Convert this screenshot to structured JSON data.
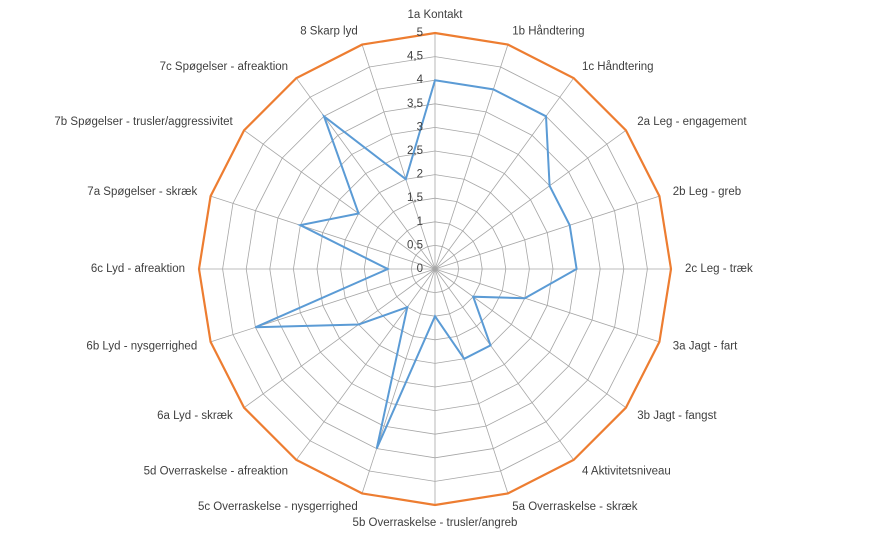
{
  "chart_data": {
    "type": "radar",
    "categories": [
      "1a Kontakt",
      "1b Håndtering",
      "1c Håndtering",
      "2a Leg - engagement",
      "2b Leg - greb",
      "2c Leg - træk",
      "3a Jagt - fart",
      "3b Jagt - fangst",
      "4 Aktivitetsniveau",
      "5a Overraskelse - skræk",
      "5b Overraskelse - trusler/angreb",
      "5c Overraskelse - nysgerrighed",
      "5d Overraskelse - afreaktion",
      "6a Lyd - skræk",
      "6b Lyd - nysgerrighed",
      "6c Lyd - afreaktion",
      "7a Spøgelser - skræk",
      "7b Spøgelser - trusler/aggressivitet",
      "7c Spøgelser - afreaktion",
      "8 Skarp lyd"
    ],
    "series": [
      {
        "color": "#5b9bd5",
        "values": [
          4,
          4,
          4,
          3,
          3,
          3,
          2,
          1,
          2,
          2,
          1,
          4,
          1,
          2,
          4,
          1,
          3,
          2,
          4,
          2
        ]
      },
      {
        "color": "#ed7d31",
        "values": [
          5,
          5,
          5,
          5,
          5,
          5,
          5,
          5,
          5,
          5,
          5,
          5,
          5,
          5,
          5,
          5,
          5,
          5,
          5,
          5
        ]
      }
    ],
    "ylim": [
      0,
      5
    ],
    "yticks": [
      0,
      {
        "value": 0.5,
        "label": "0,5"
      },
      1,
      {
        "value": 1.5,
        "label": "1,5"
      },
      2,
      {
        "value": 2.5,
        "label": "2,5"
      },
      3,
      {
        "value": 3.5,
        "label": "3,5"
      },
      4,
      {
        "value": 4.5,
        "label": "4,5"
      },
      5
    ],
    "grid": true
  }
}
